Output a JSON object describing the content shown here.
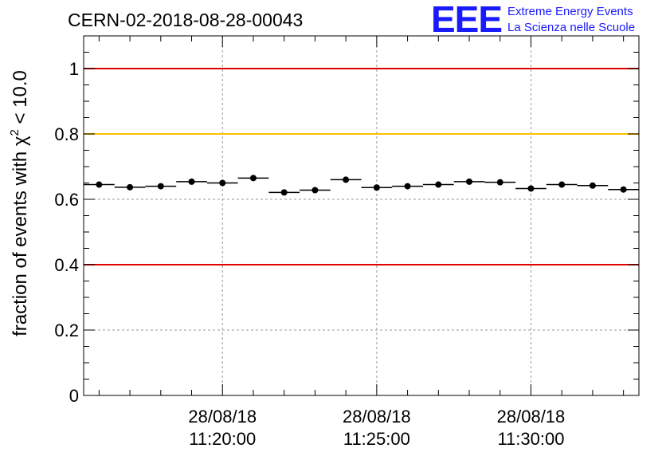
{
  "header": {
    "run_id": "CERN-02-2018-08-28-00043",
    "logo_text": "EEE",
    "logo_line1": "Extreme Energy Events",
    "logo_line2": "La Scienza nelle Scuole"
  },
  "colors": {
    "logo": "#1a1aff",
    "limit_red": "#e00000",
    "limit_yellow": "#ffc000",
    "grid": "#999999",
    "marker": "#000000"
  },
  "chart_data": {
    "type": "scatter",
    "title": "CERN-02-2018-08-28-00043",
    "ylabel_prefix": "fraction of events with ",
    "ylabel_symbol": "χ",
    "ylabel_sup": "2",
    "ylabel_suffix": " < 10.0",
    "xlabel": "",
    "xlim_minutes": [
      -7.0,
      11.0
    ],
    "ylim": [
      0,
      1.1
    ],
    "y_ticks": [
      0,
      0.2,
      0.4,
      0.6,
      0.8,
      1
    ],
    "y_tick_labels": [
      "0",
      "0.2",
      "0.4",
      "0.6",
      "0.8",
      "1"
    ],
    "x_ticks": [
      {
        "minute": -2.5,
        "date": "28/08/18",
        "time": "11:20:00"
      },
      {
        "minute": 2.5,
        "date": "28/08/18",
        "time": "11:25:00"
      },
      {
        "minute": 7.5,
        "date": "28/08/18",
        "time": "11:30:00"
      }
    ],
    "x_minor_tick_step_minutes": 1,
    "bin_width_minutes": 1,
    "x": [
      -6.5,
      -5.5,
      -4.5,
      -3.5,
      -2.5,
      -1.5,
      -0.5,
      0.5,
      1.5,
      2.5,
      3.5,
      4.5,
      5.5,
      6.5,
      7.5,
      8.5,
      9.5,
      10.5
    ],
    "values": [
      0.645,
      0.637,
      0.64,
      0.654,
      0.65,
      0.665,
      0.621,
      0.628,
      0.66,
      0.636,
      0.64,
      0.645,
      0.654,
      0.652,
      0.633,
      0.645,
      0.642,
      0.63
    ],
    "reference_lines": [
      {
        "y": 1.0,
        "color": "#e00000"
      },
      {
        "y": 0.8,
        "color": "#ffc000"
      },
      {
        "y": 0.4,
        "color": "#e00000"
      }
    ],
    "grid": true
  }
}
